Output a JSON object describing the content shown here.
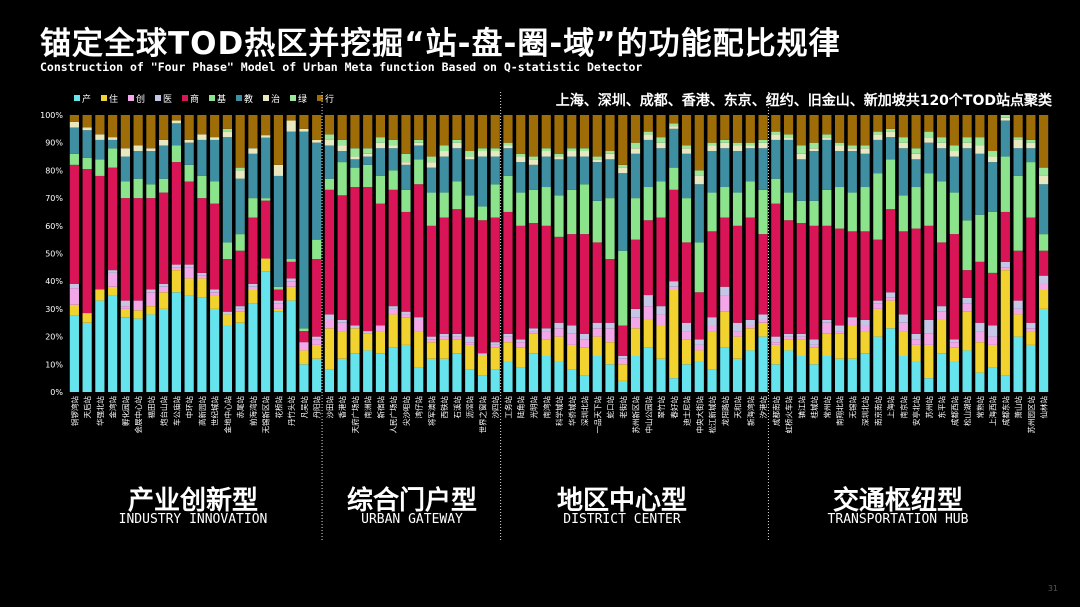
{
  "title": "锚定全球TOD热区并挖掘“站-盘-圈-域”的功能配比规律",
  "subtitle": "Construction of \"Four Phase\" Model of Urban Meta function Based on Q-statistic Detector",
  "note": "上海、深圳、成都、香港、东京、纽约、旧金山、新加坡共120个TOD站点聚类",
  "page_number": "31",
  "groups": [
    {
      "cn": "产业创新型",
      "en": "INDUSTRY INNOVATION"
    },
    {
      "cn": "综合门户型",
      "en": "URBAN GATEWAY"
    },
    {
      "cn": "地区中心型",
      "en": "DISTRICT CENTER"
    },
    {
      "cn": "交通枢纽型",
      "en": "TRANSPORTATION HUB"
    }
  ],
  "chart_data": {
    "type": "bar",
    "stacked": true,
    "ylim": [
      0,
      100
    ],
    "yticks": [
      "0%",
      "10%",
      "20%",
      "30%",
      "40%",
      "50%",
      "60%",
      "70%",
      "80%",
      "90%",
      "100%"
    ],
    "legend_position": "top-left",
    "grid": false,
    "series_colors": [
      "#66E4EE",
      "#F2D22E",
      "#F4A7E8",
      "#C5C5E6",
      "#D91558",
      "#8BE38C",
      "#3F8FA3",
      "#E7E7C0",
      "#9AE79A",
      "#9E6D08"
    ],
    "series_names": [
      "产",
      "住",
      "创",
      "医",
      "商",
      "基",
      "教",
      "治",
      "绿",
      "行"
    ],
    "categories": [
      "铜锣湾站",
      "天后站",
      "华强北站",
      "金湾站",
      "孵化园站",
      "会展中心站",
      "福田站",
      "炮台山站",
      "车公庙站",
      "中环站",
      "高新园站",
      "世纪城站",
      "金地中心站",
      "赤尾站",
      "前海湾站",
      "无锡新区站",
      "花桥站",
      "丹竹头站",
      "凡吴站",
      "丹阳站",
      "沙田站",
      "香港站",
      "天府广场站",
      "南洲站",
      "新宿站",
      "人民广场站",
      "尖沙咀站",
      "湾仔站",
      "将军澳站",
      "西铁站",
      "石溪站",
      "沥滘站",
      "世界之窗站",
      "沙四站",
      "工务站",
      "陆角站",
      "光明站",
      "南湾站",
      "科学城站",
      "华侨城站",
      "深圳北站",
      "一品天下站",
      "蛇口站",
      "老街站",
      "苏州新区站",
      "中山公园站",
      "翠竹站",
      "春好站",
      "迪士尼站",
      "中央大街站",
      "松江新城站",
      "龙阳路站",
      "天和站",
      "新海湾站",
      "汐港站",
      "成都南站",
      "虹桥火车站",
      "镇江站",
      "桂城站",
      "常州站",
      "南翔北站",
      "无锡站",
      "深圳北站",
      "南京南站",
      "上海站",
      "南京站",
      "安亭北站",
      "苏州站",
      "东平站",
      "成都西站",
      "松山湖站",
      "常熟站",
      "上海西站",
      "成都东站",
      "萧山站",
      "苏州园区站",
      "仙林站"
    ],
    "bars": [
      [
        27.5,
        4,
        6,
        1.5,
        43,
        4,
        9.5,
        2,
        0,
        2.5
      ],
      [
        25,
        3.5,
        0,
        0,
        52,
        4,
        10,
        1,
        0,
        4.5
      ],
      [
        33,
        4,
        0,
        0,
        41,
        6,
        7,
        2,
        0,
        7
      ],
      [
        35,
        3,
        5,
        1,
        37,
        7,
        3,
        1,
        0,
        8
      ],
      [
        27,
        3,
        1,
        2,
        37,
        6,
        9,
        3,
        0,
        12
      ],
      [
        26.5,
        3,
        3,
        0.5,
        37,
        7,
        10,
        2,
        0,
        11
      ],
      [
        28,
        3,
        5,
        1,
        33,
        5,
        12,
        1,
        0,
        12
      ],
      [
        30,
        6,
        2,
        1,
        33,
        5,
        12,
        2,
        0,
        9
      ],
      [
        36,
        8,
        1,
        1,
        37,
        6,
        8,
        1,
        0,
        2
      ],
      [
        35,
        6,
        4,
        1,
        30,
        6,
        8,
        1,
        0,
        9
      ],
      [
        34,
        7,
        1,
        1,
        27,
        8,
        13,
        2,
        0,
        7
      ],
      [
        30,
        5,
        1,
        1,
        31,
        8,
        15,
        1,
        0,
        8
      ],
      [
        24,
        4,
        0,
        1,
        19,
        6,
        38,
        2,
        1,
        5
      ],
      [
        25,
        4,
        1,
        1,
        20,
        6,
        20,
        3,
        1,
        19
      ],
      [
        32,
        5,
        1,
        1,
        24,
        7,
        16,
        2,
        0,
        12
      ],
      [
        48,
        5,
        0,
        0,
        23,
        1,
        24,
        1,
        0,
        8
      ],
      [
        29,
        1,
        2,
        1,
        4,
        1,
        40,
        4,
        0,
        18
      ],
      [
        33,
        5,
        2,
        1,
        6,
        1,
        46,
        4,
        0,
        2
      ],
      [
        10,
        5,
        3,
        0,
        4,
        1,
        71,
        1,
        0,
        5
      ],
      [
        12,
        5,
        2,
        1,
        28,
        7,
        35,
        1,
        0,
        9
      ],
      [
        8,
        15,
        3,
        2,
        45,
        4,
        12,
        2,
        2,
        7
      ],
      [
        12,
        10,
        3,
        1,
        45,
        12,
        4,
        2,
        2,
        9
      ],
      [
        14,
        9,
        0,
        1,
        50,
        7,
        3,
        1,
        3,
        12
      ],
      [
        15,
        6,
        0,
        1,
        52,
        8,
        3,
        1,
        2,
        12
      ],
      [
        14,
        8,
        2,
        0,
        44,
        10,
        10,
        2,
        2,
        8
      ],
      [
        16,
        12,
        2,
        1,
        42,
        7,
        8,
        1,
        2,
        9
      ],
      [
        17,
        10,
        1,
        1,
        36,
        8,
        9,
        1,
        3,
        14
      ],
      [
        9,
        13,
        4,
        1,
        48,
        9,
        5,
        1,
        1,
        9
      ],
      [
        12,
        6,
        1,
        1,
        40,
        12,
        9,
        2,
        2,
        15
      ],
      [
        12,
        7,
        1,
        1,
        42,
        9,
        13,
        2,
        2,
        11
      ],
      [
        14,
        5,
        1,
        1,
        45,
        10,
        12,
        2,
        1,
        9
      ],
      [
        8,
        9,
        1,
        2,
        43,
        8,
        13,
        1,
        2,
        13
      ],
      [
        6,
        7,
        0,
        1,
        48,
        5,
        18,
        2,
        1,
        12
      ],
      [
        8,
        8,
        1,
        1,
        45,
        12,
        10,
        2,
        1,
        12
      ],
      [
        11,
        7,
        2,
        1,
        44,
        13,
        10,
        1,
        1,
        10
      ],
      [
        9,
        7,
        2,
        1,
        41,
        12,
        11,
        2,
        1,
        14
      ],
      [
        14,
        7,
        1,
        1,
        38,
        12,
        9,
        2,
        1,
        15
      ],
      [
        13,
        6,
        3,
        1,
        37,
        14,
        11,
        2,
        1,
        12
      ],
      [
        11,
        9,
        3,
        2,
        31,
        15,
        13,
        1,
        1,
        14
      ],
      [
        8,
        9,
        4,
        3,
        33,
        16,
        12,
        2,
        1,
        12
      ],
      [
        6,
        10,
        3,
        2,
        36,
        18,
        10,
        2,
        1,
        12
      ],
      [
        13,
        7,
        3,
        2,
        29,
        15,
        14,
        1,
        1,
        15
      ],
      [
        10,
        8,
        5,
        2,
        23,
        22,
        14,
        2,
        1,
        13
      ],
      [
        4,
        6,
        2,
        1,
        11,
        27,
        28,
        2,
        1,
        18
      ],
      [
        13,
        10,
        4,
        3,
        25,
        15,
        16,
        2,
        2,
        10
      ],
      [
        16,
        10,
        5,
        4,
        27,
        12,
        17,
        2,
        1,
        6
      ],
      [
        12,
        12,
        4,
        3,
        32,
        13,
        12,
        2,
        2,
        8
      ],
      [
        5,
        32,
        1,
        2,
        33,
        8,
        14,
        1,
        1,
        3
      ],
      [
        10,
        9,
        3,
        3,
        29,
        16,
        16,
        2,
        1,
        11
      ],
      [
        11,
        4,
        2,
        2,
        17,
        18,
        21,
        3,
        2,
        20
      ],
      [
        8,
        14,
        2,
        3,
        31,
        14,
        15,
        2,
        1,
        10
      ],
      [
        16,
        13,
        6,
        3,
        25,
        11,
        14,
        2,
        1,
        9
      ],
      [
        12,
        8,
        2,
        3,
        35,
        12,
        15,
        2,
        1,
        10
      ],
      [
        15,
        8,
        1,
        2,
        37,
        13,
        12,
        1,
        1,
        10
      ],
      [
        20,
        5,
        1,
        2,
        29,
        16,
        15,
        2,
        1,
        9
      ],
      [
        10,
        7,
        1,
        2,
        48,
        9,
        14,
        2,
        1,
        6
      ],
      [
        15,
        4,
        1,
        1,
        41,
        10,
        19,
        1,
        1,
        7
      ],
      [
        13,
        6,
        1,
        1,
        40,
        8,
        15,
        2,
        3,
        11
      ],
      [
        10,
        6,
        1,
        2,
        41,
        9,
        18,
        1,
        2,
        10
      ],
      [
        13,
        8,
        4,
        1,
        34,
        13,
        18,
        1,
        1,
        7
      ],
      [
        12,
        9,
        1,
        2,
        35,
        15,
        13,
        2,
        1,
        10
      ],
      [
        12,
        12,
        2,
        1,
        31,
        14,
        15,
        1,
        1,
        11
      ],
      [
        14,
        8,
        2,
        2,
        32,
        16,
        12,
        2,
        1,
        11
      ],
      [
        20,
        10,
        2,
        1,
        22,
        24,
        12,
        2,
        1,
        6
      ],
      [
        23,
        10,
        1,
        2,
        30,
        18,
        8,
        2,
        1,
        5
      ],
      [
        13,
        9,
        3,
        3,
        30,
        13,
        17,
        2,
        2,
        8
      ],
      [
        11,
        6,
        2,
        2,
        38,
        15,
        10,
        2,
        2,
        12
      ],
      [
        5,
        12,
        4,
        5,
        34,
        19,
        11,
        2,
        2,
        6
      ],
      [
        14,
        12,
        3,
        2,
        23,
        22,
        12,
        2,
        2,
        8
      ],
      [
        11,
        5,
        2,
        1,
        38,
        15,
        13,
        2,
        2,
        11
      ],
      [
        15,
        14,
        3,
        2,
        10,
        18,
        26,
        2,
        2,
        8
      ],
      [
        7,
        11,
        4,
        3,
        22,
        17,
        22,
        3,
        3,
        8
      ],
      [
        9,
        8,
        3,
        4,
        19,
        22,
        18,
        2,
        2,
        13
      ],
      [
        6,
        38,
        1,
        2,
        18,
        20,
        13,
        1,
        1,
        0
      ],
      [
        20,
        8,
        2,
        3,
        18,
        27,
        10,
        3,
        1,
        8
      ],
      [
        17,
        5,
        1,
        2,
        38,
        20,
        5,
        2,
        1,
        9
      ],
      [
        30,
        7,
        2,
        3,
        9,
        6,
        18,
        3,
        3,
        19
      ]
    ]
  }
}
